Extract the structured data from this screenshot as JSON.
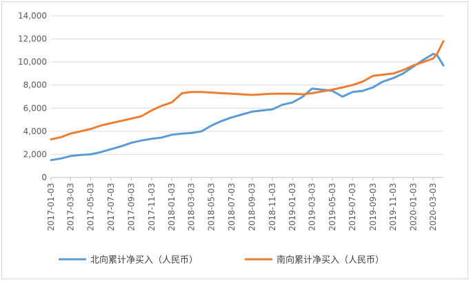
{
  "chart_data": {
    "type": "line",
    "title": "",
    "xlabel": "",
    "ylabel": "",
    "ylim": [
      0,
      14000
    ],
    "y_ticks": [
      "0",
      "2,000",
      "4,000",
      "6,000",
      "8,000",
      "10,000",
      "12,000",
      "14,000"
    ],
    "x_ticks": [
      "2017-01-03",
      "2017-03-03",
      "2017-05-03",
      "2017-07-03",
      "2017-09-03",
      "2017-11-03",
      "2018-01-03",
      "2018-03-03",
      "2018-05-03",
      "2018-07-03",
      "2018-09-03",
      "2018-11-03",
      "2019-01-03",
      "2019-03-03",
      "2019-05-03",
      "2019-07-03",
      "2019-09-03",
      "2019-11-03",
      "2020-01-03",
      "2020-03-03"
    ],
    "grid": "horizontal",
    "legend_position": "bottom",
    "x": [
      "2017-01-03",
      "2017-02-03",
      "2017-03-03",
      "2017-04-03",
      "2017-05-03",
      "2017-06-03",
      "2017-07-03",
      "2017-08-03",
      "2017-09-03",
      "2017-10-03",
      "2017-11-03",
      "2017-12-03",
      "2018-01-03",
      "2018-02-03",
      "2018-03-03",
      "2018-04-03",
      "2018-05-03",
      "2018-06-03",
      "2018-07-03",
      "2018-08-03",
      "2018-09-03",
      "2018-10-03",
      "2018-11-03",
      "2018-12-03",
      "2019-01-03",
      "2019-02-03",
      "2019-03-03",
      "2019-04-03",
      "2019-05-03",
      "2019-06-03",
      "2019-07-03",
      "2019-08-03",
      "2019-09-03",
      "2019-10-03",
      "2019-11-03",
      "2019-12-03",
      "2020-01-03",
      "2020-02-03",
      "2020-03-03",
      "2020-03-15",
      "2020-04-03"
    ],
    "series": [
      {
        "name": "北向累计净买入（人民币）",
        "color": "#5b9bd5",
        "values": [
          1500,
          1650,
          1850,
          1950,
          2000,
          2200,
          2450,
          2700,
          3000,
          3200,
          3350,
          3450,
          3700,
          3800,
          3850,
          4000,
          4500,
          4900,
          5200,
          5450,
          5700,
          5800,
          5900,
          6300,
          6500,
          7000,
          7700,
          7600,
          7500,
          7000,
          7400,
          7500,
          7800,
          8300,
          8600,
          9000,
          9600,
          10200,
          10700,
          10600,
          9700
        ]
      },
      {
        "name": "南向累计净买入（人民币）",
        "color": "#ed7d31",
        "values": [
          3300,
          3500,
          3800,
          4000,
          4200,
          4500,
          4700,
          4900,
          5100,
          5300,
          5800,
          6200,
          6500,
          7300,
          7400,
          7400,
          7350,
          7300,
          7250,
          7200,
          7150,
          7200,
          7250,
          7250,
          7250,
          7200,
          7300,
          7450,
          7600,
          7800,
          8000,
          8300,
          8800,
          8900,
          9000,
          9300,
          9700,
          10000,
          10300,
          10700,
          11800
        ]
      }
    ]
  }
}
